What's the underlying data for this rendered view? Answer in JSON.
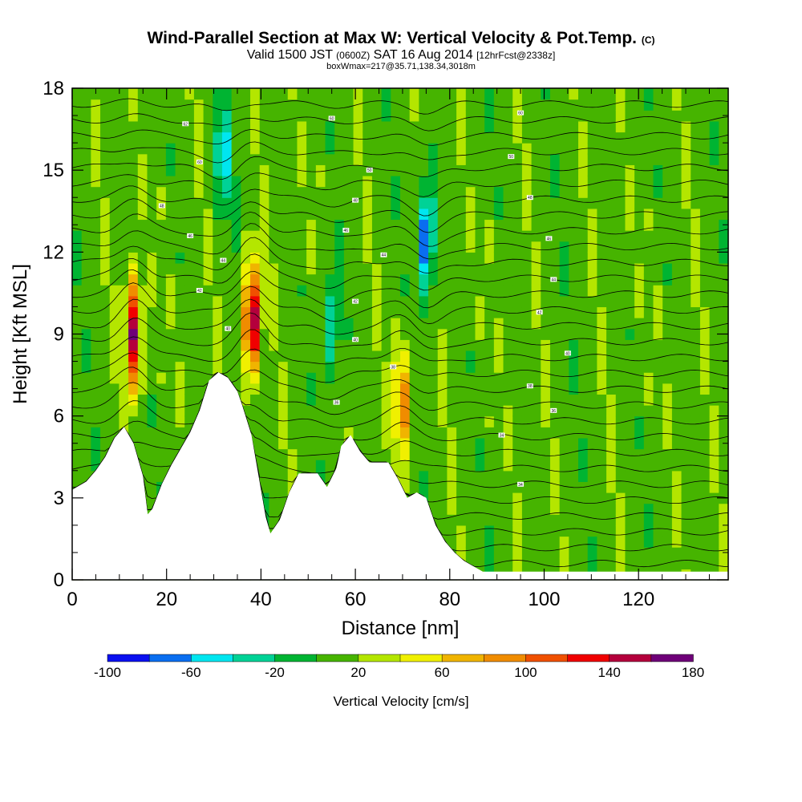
{
  "header": {
    "title": "Wind-Parallel Section at Max W: Vertical Velocity & Pot.Temp.",
    "copyright": "(C)",
    "valid_prefix": "Valid 1500 JST",
    "valid_utc": "(0600Z)",
    "valid_date": "SAT 16 Aug 2014",
    "forecast": "[12hrFcst@2338z]",
    "box_info": "boxWmax=217@35.71,138.34,3018m"
  },
  "colors": {
    "palette": [
      "#0a10f0",
      "#0a6ef0",
      "#00e6f0",
      "#00d296",
      "#00b432",
      "#46b400",
      "#b4e600",
      "#f0f000",
      "#f0b400",
      "#f08c00",
      "#f05000",
      "#f00000",
      "#b4003c",
      "#6e0078"
    ],
    "terrain": "#ffffff",
    "contour": "#000000"
  },
  "chart_data": {
    "type": "heatmap",
    "title": "Wind-Parallel Section at Max W: Vertical Velocity & Pot.Temp.",
    "xlabel": "Distance [nm]",
    "ylabel": "Height [Kft MSL]",
    "xlim": [
      0,
      139
    ],
    "ylim": [
      0,
      18
    ],
    "x_ticks": [
      "0",
      "20",
      "40",
      "60",
      "80",
      "100",
      "120"
    ],
    "y_ticks": [
      "0",
      "3",
      "6",
      "9",
      "12",
      "15",
      "18"
    ],
    "colorbar": {
      "label": "Vertical Velocity [cm/s]",
      "tick_labels": [
        "-100",
        "-60",
        "-20",
        "20",
        "60",
        "100",
        "140",
        "180"
      ],
      "bounds": [
        -100,
        -80,
        -60,
        -40,
        -20,
        0,
        20,
        40,
        60,
        80,
        100,
        120,
        140,
        160,
        180
      ]
    },
    "terrain_height_kft": [
      [
        0,
        3.3
      ],
      [
        3,
        3.6
      ],
      [
        5,
        4.0
      ],
      [
        7,
        4.5
      ],
      [
        9,
        5.2
      ],
      [
        11,
        5.6
      ],
      [
        13,
        5.0
      ],
      [
        15,
        3.8
      ],
      [
        16,
        2.4
      ],
      [
        17,
        2.6
      ],
      [
        19,
        3.5
      ],
      [
        21,
        4.2
      ],
      [
        23,
        4.8
      ],
      [
        25,
        5.4
      ],
      [
        27,
        6.2
      ],
      [
        29,
        7.3
      ],
      [
        31,
        7.6
      ],
      [
        33,
        7.4
      ],
      [
        35,
        6.9
      ],
      [
        36,
        6.4
      ],
      [
        38,
        5.3
      ],
      [
        39,
        4.3
      ],
      [
        40,
        3.3
      ],
      [
        41,
        2.3
      ],
      [
        42,
        1.7
      ],
      [
        44,
        2.2
      ],
      [
        46,
        3.2
      ],
      [
        48,
        3.9
      ],
      [
        50,
        3.9
      ],
      [
        52,
        3.9
      ],
      [
        54,
        3.4
      ],
      [
        56,
        4.1
      ],
      [
        57,
        4.9
      ],
      [
        59,
        5.3
      ],
      [
        61,
        4.7
      ],
      [
        63,
        4.3
      ],
      [
        65,
        4.3
      ],
      [
        67,
        4.3
      ],
      [
        69,
        3.7
      ],
      [
        71,
        3.0
      ],
      [
        73,
        3.2
      ],
      [
        75,
        3.0
      ],
      [
        77,
        2.0
      ],
      [
        79,
        1.4
      ],
      [
        81,
        1.0
      ],
      [
        83,
        0.7
      ],
      [
        85,
        0.5
      ],
      [
        87,
        0.3
      ],
      [
        90,
        0.3
      ],
      [
        139,
        0.3
      ]
    ],
    "vertical_velocity_features_cm_s": [
      {
        "x_nm": 13,
        "z_kft": 9.0,
        "w": 150
      },
      {
        "x_nm": 38,
        "z_kft": 9.5,
        "w": 165
      },
      {
        "x_nm": 70,
        "z_kft": 6.5,
        "w": 80
      },
      {
        "x_nm": 75,
        "z_kft": 12.5,
        "w": -95
      },
      {
        "x_nm": 32,
        "z_kft": 15.5,
        "w": -60
      },
      {
        "x_nm": 55,
        "z_kft": 9.5,
        "w": -55
      }
    ],
    "theta_contour_labels": [
      {
        "x_nm": 24,
        "z_kft": 16.7,
        "text": "62"
      },
      {
        "x_nm": 27,
        "z_kft": 15.3,
        "text": "60"
      },
      {
        "x_nm": 55,
        "z_kft": 16.9,
        "text": "60"
      },
      {
        "x_nm": 95,
        "z_kft": 17.1,
        "text": "60"
      },
      {
        "x_nm": 63,
        "z_kft": 15.0,
        "text": "50"
      },
      {
        "x_nm": 93,
        "z_kft": 15.5,
        "text": "50"
      },
      {
        "x_nm": 19,
        "z_kft": 13.7,
        "text": "48"
      },
      {
        "x_nm": 60,
        "z_kft": 13.9,
        "text": "48"
      },
      {
        "x_nm": 97,
        "z_kft": 14.0,
        "text": "48"
      },
      {
        "x_nm": 25,
        "z_kft": 12.6,
        "text": "46"
      },
      {
        "x_nm": 58,
        "z_kft": 12.8,
        "text": "46"
      },
      {
        "x_nm": 101,
        "z_kft": 12.5,
        "text": "46"
      },
      {
        "x_nm": 32,
        "z_kft": 11.7,
        "text": "44"
      },
      {
        "x_nm": 66,
        "z_kft": 11.9,
        "text": "44"
      },
      {
        "x_nm": 102,
        "z_kft": 11.0,
        "text": "44"
      },
      {
        "x_nm": 27,
        "z_kft": 10.6,
        "text": "42"
      },
      {
        "x_nm": 60,
        "z_kft": 10.2,
        "text": "42"
      },
      {
        "x_nm": 99,
        "z_kft": 9.8,
        "text": "42"
      },
      {
        "x_nm": 33,
        "z_kft": 9.2,
        "text": "40"
      },
      {
        "x_nm": 60,
        "z_kft": 8.8,
        "text": "40"
      },
      {
        "x_nm": 105,
        "z_kft": 8.3,
        "text": "40"
      },
      {
        "x_nm": 68,
        "z_kft": 7.8,
        "text": "38"
      },
      {
        "x_nm": 97,
        "z_kft": 7.1,
        "text": "38"
      },
      {
        "x_nm": 56,
        "z_kft": 6.5,
        "text": "36"
      },
      {
        "x_nm": 102,
        "z_kft": 6.2,
        "text": "36"
      },
      {
        "x_nm": 91,
        "z_kft": 5.3,
        "text": "34"
      },
      {
        "x_nm": 95,
        "z_kft": 3.5,
        "text": "34"
      }
    ]
  }
}
